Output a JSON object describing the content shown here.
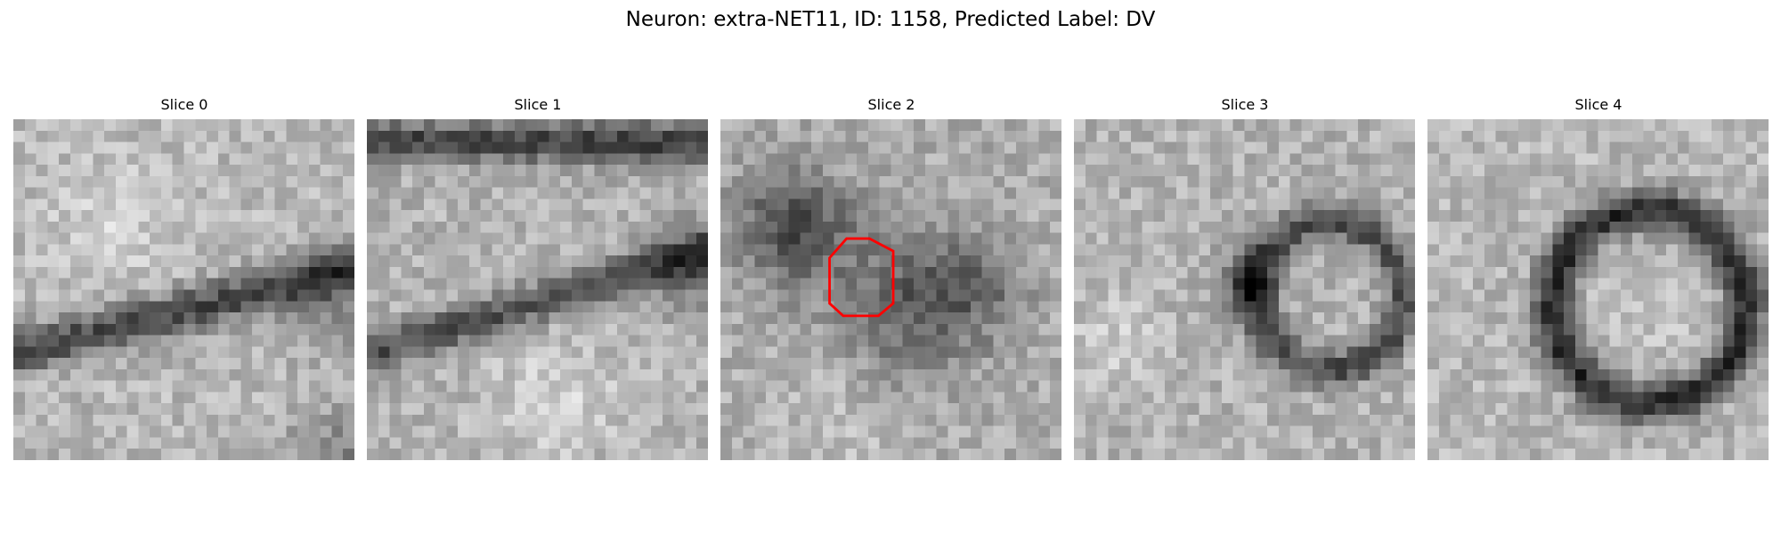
{
  "figure": {
    "suptitle": "Neuron: extra-NET11, ID: 1158, Predicted Label: DV",
    "colormap": "gray",
    "marker_color": "#ff0000",
    "marker_slice_index": 2,
    "slices": [
      {
        "title": "Slice 0"
      },
      {
        "title": "Slice 1"
      },
      {
        "title": "Slice 2"
      },
      {
        "title": "Slice 3"
      },
      {
        "title": "Slice 4"
      }
    ]
  }
}
